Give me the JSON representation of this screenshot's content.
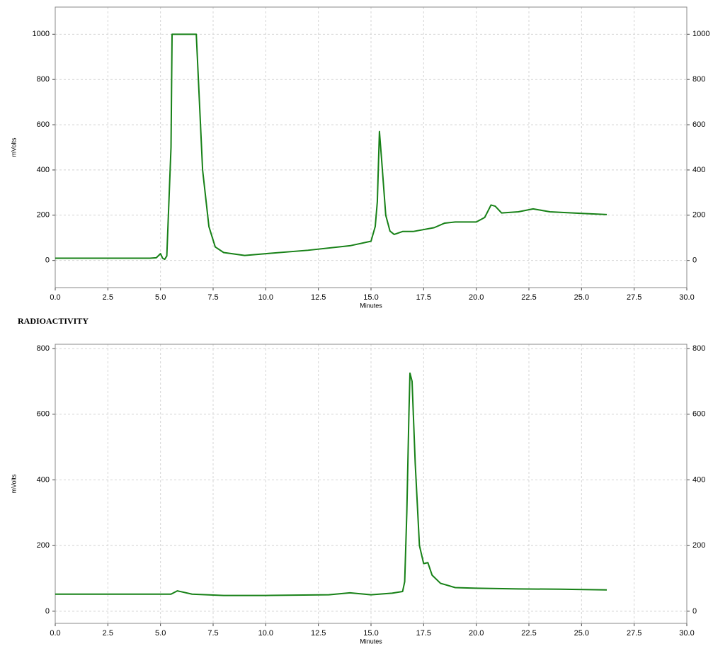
{
  "chart_data": [
    {
      "type": "line",
      "y_label": "mVolts",
      "x_label": "Minutes",
      "xlim": [
        0,
        30
      ],
      "ylim": [
        -120,
        1120
      ],
      "xticks": [
        {
          "value": 0,
          "label": "0.0"
        },
        {
          "value": 2.5,
          "label": "2.5"
        },
        {
          "value": 5,
          "label": "5.0"
        },
        {
          "value": 7.5,
          "label": "7.5"
        },
        {
          "value": 10,
          "label": "10.0"
        },
        {
          "value": 12.5,
          "label": "12.5"
        },
        {
          "value": 15,
          "label": "15.0"
        },
        {
          "value": 17.5,
          "label": "17.5"
        },
        {
          "value": 20,
          "label": "20.0"
        },
        {
          "value": 22.5,
          "label": "22.5"
        },
        {
          "value": 25,
          "label": "25.0"
        },
        {
          "value": 27.5,
          "label": "27.5"
        },
        {
          "value": 30,
          "label": "30.0"
        }
      ],
      "yticks": [
        0,
        200,
        400,
        600,
        800,
        1000
      ],
      "grid": true,
      "series": [
        {
          "color": "#178117",
          "x": [
            0,
            4.5,
            4.8,
            5.0,
            5.1,
            5.2,
            5.3,
            5.5,
            5.55,
            6.7,
            6.8,
            7.0,
            7.3,
            7.6,
            8.0,
            9.0,
            10.0,
            12.0,
            14.0,
            15.0,
            15.2,
            15.3,
            15.4,
            15.5,
            15.7,
            15.9,
            16.1,
            16.5,
            17.0,
            18.0,
            18.5,
            19.0,
            20.0,
            20.4,
            20.7,
            20.9,
            21.2,
            22.0,
            22.7,
            23.5,
            25.0,
            26.2
          ],
          "values": [
            10,
            10,
            12,
            30,
            10,
            5,
            20,
            500,
            1000,
            1000,
            800,
            400,
            150,
            60,
            35,
            22,
            30,
            45,
            65,
            85,
            150,
            260,
            570,
            450,
            200,
            130,
            115,
            128,
            128,
            145,
            165,
            170,
            170,
            190,
            245,
            240,
            210,
            215,
            228,
            215,
            208,
            203
          ]
        }
      ]
    },
    {
      "type": "line",
      "title": "RADIOACTIVITY",
      "y_label": "mVolts",
      "x_label": "Minutes",
      "xlim": [
        0,
        30
      ],
      "ylim": [
        -37,
        813
      ],
      "xticks": [
        {
          "value": 0,
          "label": "0.0"
        },
        {
          "value": 2.5,
          "label": "2.5"
        },
        {
          "value": 5,
          "label": "5.0"
        },
        {
          "value": 7.5,
          "label": "7.5"
        },
        {
          "value": 10,
          "label": "10.0"
        },
        {
          "value": 12.5,
          "label": "12.5"
        },
        {
          "value": 15,
          "label": "15.0"
        },
        {
          "value": 17.5,
          "label": "17.5"
        },
        {
          "value": 20,
          "label": "20.0"
        },
        {
          "value": 22.5,
          "label": "22.5"
        },
        {
          "value": 25,
          "label": "25.0"
        },
        {
          "value": 27.5,
          "label": "27.5"
        },
        {
          "value": 30,
          "label": "30.0"
        }
      ],
      "yticks": [
        0,
        200,
        400,
        600,
        800
      ],
      "grid": true,
      "series": [
        {
          "color": "#178117",
          "x": [
            0,
            5.5,
            5.8,
            6.5,
            8.0,
            10.0,
            13.0,
            14.0,
            15.0,
            16.0,
            16.5,
            16.6,
            16.7,
            16.8,
            16.85,
            16.95,
            17.1,
            17.3,
            17.5,
            17.7,
            17.9,
            18.3,
            19.0,
            20.0,
            22.0,
            24.0,
            26.2
          ],
          "values": [
            52,
            52,
            62,
            52,
            48,
            48,
            50,
            56,
            50,
            55,
            60,
            90,
            300,
            600,
            725,
            700,
            450,
            200,
            145,
            148,
            110,
            85,
            72,
            70,
            68,
            67,
            65
          ]
        }
      ]
    }
  ]
}
